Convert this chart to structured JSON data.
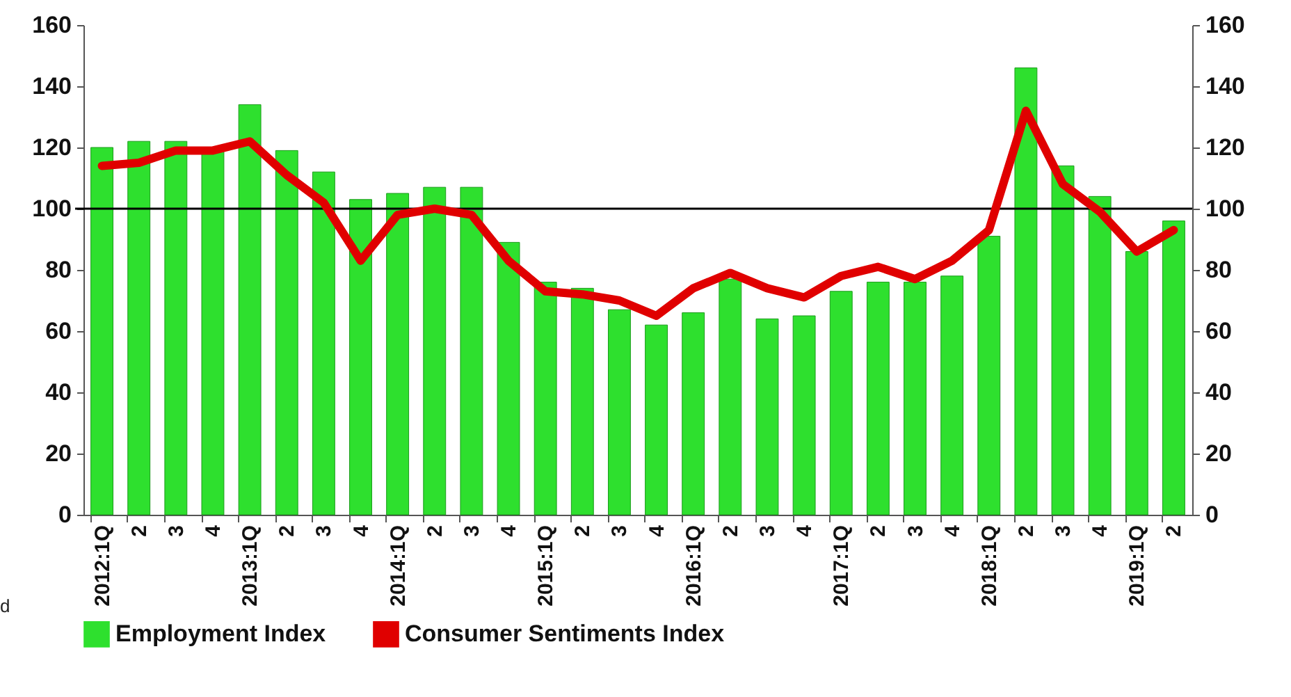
{
  "chart_data": {
    "type": "bar",
    "categories": [
      "2012:1Q",
      "2",
      "3",
      "4",
      "2013:1Q",
      "2",
      "3",
      "4",
      "2014:1Q",
      "2",
      "3",
      "4",
      "2015:1Q",
      "2",
      "3",
      "4",
      "2016:1Q",
      "2",
      "3",
      "4",
      "2017:1Q",
      "2",
      "3",
      "4",
      "2018:1Q",
      "2",
      "3",
      "4",
      "2019:1Q",
      "2"
    ],
    "series": [
      {
        "name": "Employment Index",
        "color": "#2ee02e",
        "values": [
          120,
          122,
          122,
          119,
          134,
          119,
          112,
          103,
          105,
          107,
          107,
          89,
          76,
          74,
          67,
          62,
          66,
          77,
          64,
          65,
          73,
          76,
          76,
          78,
          91,
          146,
          114,
          104,
          86,
          96
        ]
      },
      {
        "name": "Consumer Sentiments Index",
        "type": "line",
        "axis": "y2",
        "color": "#e00000",
        "values": [
          114,
          115,
          119,
          119,
          122,
          111,
          102,
          83,
          98,
          100,
          98,
          83,
          73,
          72,
          70,
          65,
          74,
          79,
          74,
          71,
          78,
          81,
          77,
          83,
          93,
          132,
          108,
          99,
          86,
          93
        ]
      }
    ],
    "ylim": [
      0,
      160
    ],
    "yticks": [
      0,
      20,
      40,
      60,
      80,
      100,
      120,
      140,
      160
    ],
    "y2lim": [
      0,
      160
    ],
    "y2ticks": [
      0,
      20,
      40,
      60,
      80,
      100,
      120,
      140,
      160
    ],
    "ref_lines": [
      {
        "axis": "y",
        "value": 100,
        "color": "#000000"
      }
    ],
    "legend": "bottom",
    "grid": false,
    "annotations": [
      "d"
    ]
  }
}
